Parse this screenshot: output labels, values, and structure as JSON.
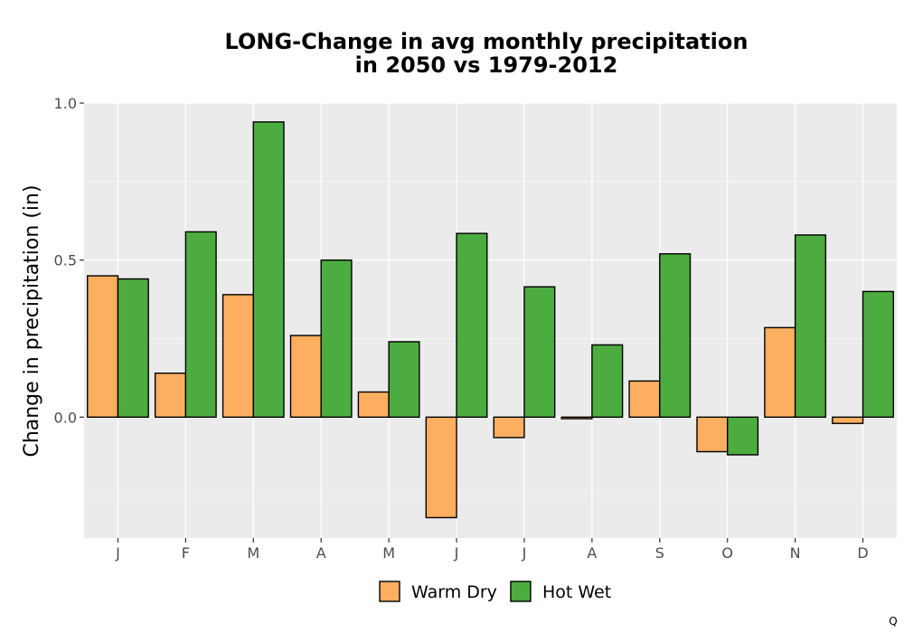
{
  "chart_data": {
    "type": "bar",
    "title_line1": "LONG-Change in avg monthly precipitation",
    "title_line2": "in 2050 vs 1979-2012",
    "xlabel": "",
    "ylabel": "Change in precipitation (in)",
    "ylim": [
      -0.385,
      1.0
    ],
    "yticks": [
      0.0,
      0.5,
      1.0
    ],
    "ytick_labels": [
      "0.0",
      "0.5",
      "1.0"
    ],
    "categories": [
      "J",
      "F",
      "M",
      "A",
      "M",
      "J",
      "J",
      "A",
      "S",
      "O",
      "N",
      "D"
    ],
    "series": [
      {
        "name": "Warm Dry",
        "color": "#fdae61",
        "values": [
          0.45,
          0.14,
          0.39,
          0.26,
          0.08,
          -0.32,
          -0.065,
          -0.005,
          0.115,
          -0.11,
          0.285,
          -0.02
        ]
      },
      {
        "name": "Hot Wet",
        "color": "#4dac3f",
        "values": [
          0.44,
          0.59,
          0.94,
          0.5,
          0.24,
          0.585,
          0.415,
          0.23,
          0.52,
          -0.12,
          0.58,
          0.4
        ]
      }
    ],
    "grid": true,
    "legend_position": "bottom"
  },
  "corner_mark": "Q"
}
